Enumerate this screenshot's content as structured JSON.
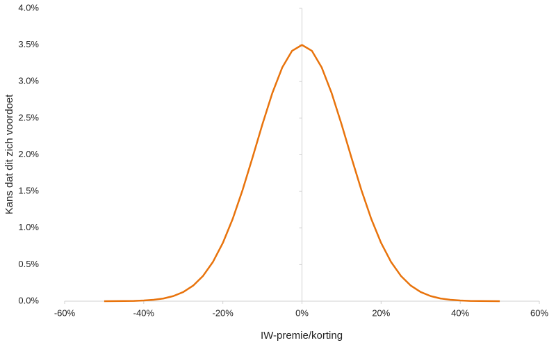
{
  "chart_data": {
    "type": "line",
    "x_label": "IW-premie/korting",
    "y_label": "Kans dat dit zich voordoet",
    "x": [
      -50,
      -47.5,
      -45,
      -42.5,
      -40,
      -37.5,
      -35,
      -32.5,
      -30,
      -27.5,
      -25,
      -22.5,
      -20,
      -17.5,
      -15,
      -12.5,
      -10,
      -7.5,
      -5,
      -2.5,
      0,
      2.5,
      5,
      7.5,
      10,
      12.5,
      15,
      17.5,
      20,
      22.5,
      25,
      27.5,
      30,
      32.5,
      35,
      37.5,
      40,
      42.5,
      45,
      47.5,
      50
    ],
    "series": [
      {
        "color": "#e8730c",
        "values": [
          0.0,
          0.001,
          0.002,
          0.004,
          0.009,
          0.019,
          0.037,
          0.07,
          0.125,
          0.213,
          0.346,
          0.537,
          0.796,
          1.126,
          1.521,
          1.962,
          2.417,
          2.842,
          3.191,
          3.42,
          3.5,
          3.42,
          3.191,
          2.842,
          2.417,
          1.962,
          1.521,
          1.126,
          0.796,
          0.537,
          0.346,
          0.213,
          0.125,
          0.07,
          0.037,
          0.019,
          0.009,
          0.004,
          0.002,
          0.001,
          0.0
        ]
      }
    ],
    "xlim": [
      -60,
      60
    ],
    "xticks": [
      {
        "value": -60,
        "label": "-60%"
      },
      {
        "value": -40,
        "label": "-40%"
      },
      {
        "value": -20,
        "label": "-20%"
      },
      {
        "value": 0,
        "label": "0%"
      },
      {
        "value": 20,
        "label": "20%"
      },
      {
        "value": 40,
        "label": "40%"
      },
      {
        "value": 60,
        "label": "60%"
      }
    ],
    "ylim": [
      0,
      4
    ],
    "yticks": [
      {
        "value": 0,
        "label": "0.0%"
      },
      {
        "value": 0.5,
        "label": "0.5%"
      },
      {
        "value": 1,
        "label": "1.0%"
      },
      {
        "value": 1.5,
        "label": "1.5%"
      },
      {
        "value": 2,
        "label": "2.0%"
      },
      {
        "value": 2.5,
        "label": "2.5%"
      },
      {
        "value": 3,
        "label": "3.0%"
      },
      {
        "value": 3.5,
        "label": "3.5%"
      },
      {
        "value": 4,
        "label": "4.0%"
      }
    ],
    "grid": false
  }
}
